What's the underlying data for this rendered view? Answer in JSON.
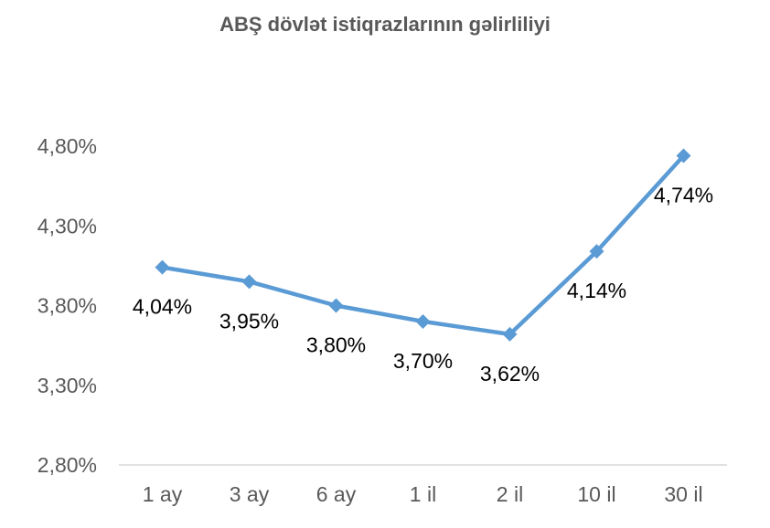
{
  "chart_data": {
    "type": "line",
    "title": "ABŞ dövlət istiqrazlarının gəlirliliyi",
    "categories": [
      "1 ay",
      "3 ay",
      "6 ay",
      "1 il",
      "2 il",
      "10 il",
      "30 il"
    ],
    "series": [
      {
        "values": [
          4.04,
          3.95,
          3.8,
          3.7,
          3.62,
          4.14,
          4.74
        ]
      }
    ],
    "data_labels": [
      "4,04%",
      "3,95%",
      "3,80%",
      "3,70%",
      "3,62%",
      "4,14%",
      "4,74%"
    ],
    "ylim": [
      2.8,
      4.8
    ],
    "yticks": [
      2.8,
      3.3,
      3.8,
      4.3,
      4.8
    ],
    "ytick_labels": [
      "2,80%",
      "3,30%",
      "3,80%",
      "4,30%",
      "4,80%"
    ],
    "xlabel": "",
    "ylabel": "",
    "grid": false,
    "legend": "none",
    "line_color": "#5B9BD5"
  }
}
